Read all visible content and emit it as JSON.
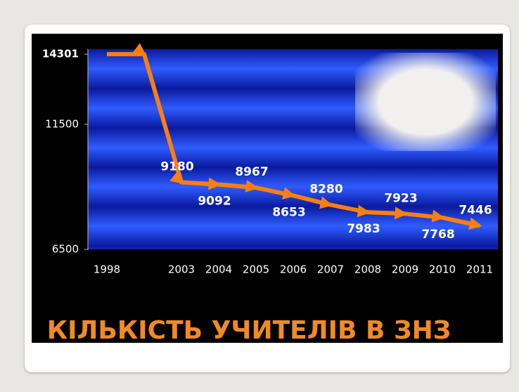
{
  "chart_data": {
    "type": "line",
    "title": "КІЛЬКІСТЬ УЧИТЕЛІВ В ЗНЗ",
    "categories": [
      "1998",
      null,
      "2003",
      "2004",
      "2005",
      "2006",
      "2007",
      "2008",
      "2009",
      "2010",
      "2011"
    ],
    "values": [
      14301,
      14301,
      9180,
      9092,
      8967,
      8653,
      8280,
      7983,
      7923,
      7768,
      7446
    ],
    "color": "#ff7f0e",
    "ylim": [
      6500,
      14500
    ],
    "yticks": [
      6500,
      11500,
      14301
    ]
  }
}
